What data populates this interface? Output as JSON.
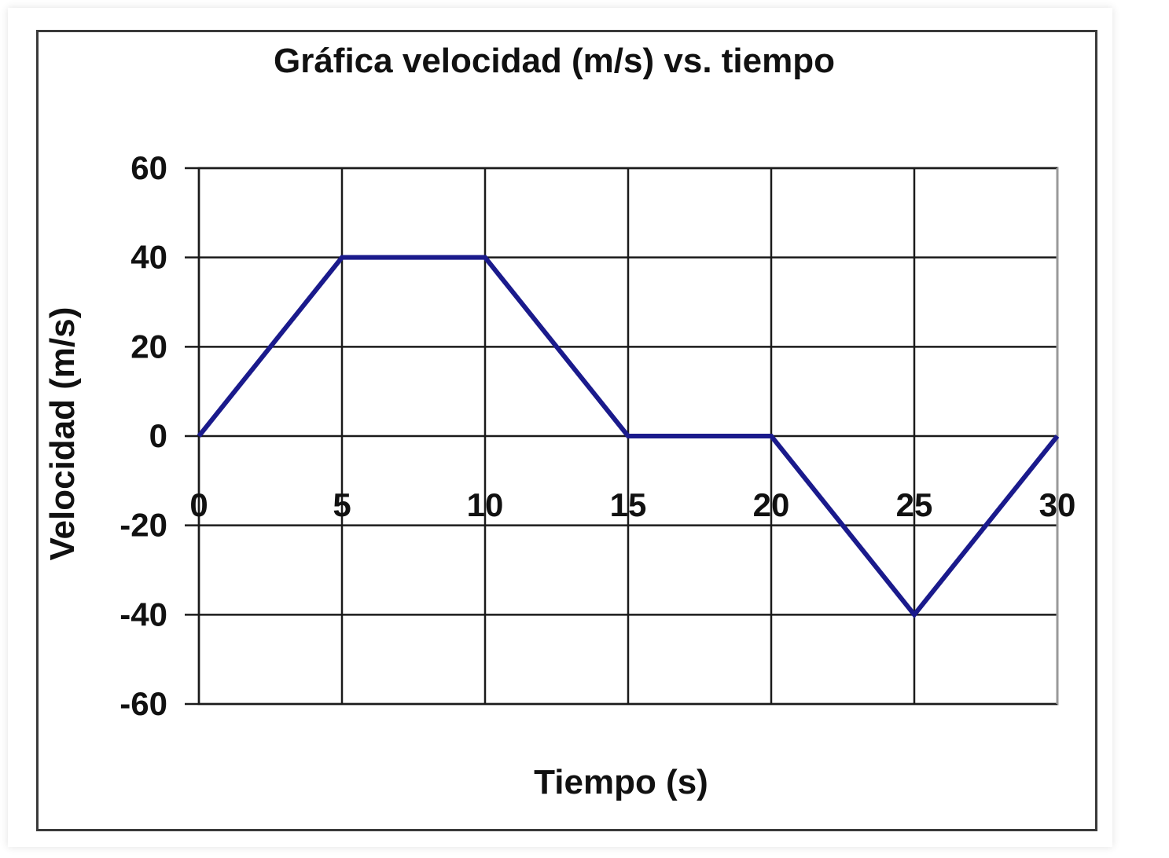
{
  "chart_data": {
    "type": "line",
    "title": "Gráfica velocidad (m/s) vs. tiempo",
    "xlabel": "Tiempo (s)",
    "ylabel": "Velocidad (m/s)",
    "x_ticks": [
      "0",
      "5",
      "10",
      "15",
      "20",
      "25",
      "30"
    ],
    "y_ticks": [
      "60",
      "40",
      "20",
      "0",
      "-20",
      "-40",
      "-60"
    ],
    "xlim": [
      0,
      30
    ],
    "ylim": [
      -60,
      60
    ],
    "grid": true,
    "x": [
      0,
      5,
      10,
      15,
      20,
      25,
      30
    ],
    "series": [
      {
        "values": [
          0,
          40,
          40,
          0,
          0,
          -40,
          0
        ],
        "color": "#1a1a8c"
      }
    ],
    "colors": {
      "line": "#1a1a8c",
      "grid": "#1a1a1a",
      "frame": "#3a3a3a",
      "plot_border": "#9a9a9a"
    }
  }
}
